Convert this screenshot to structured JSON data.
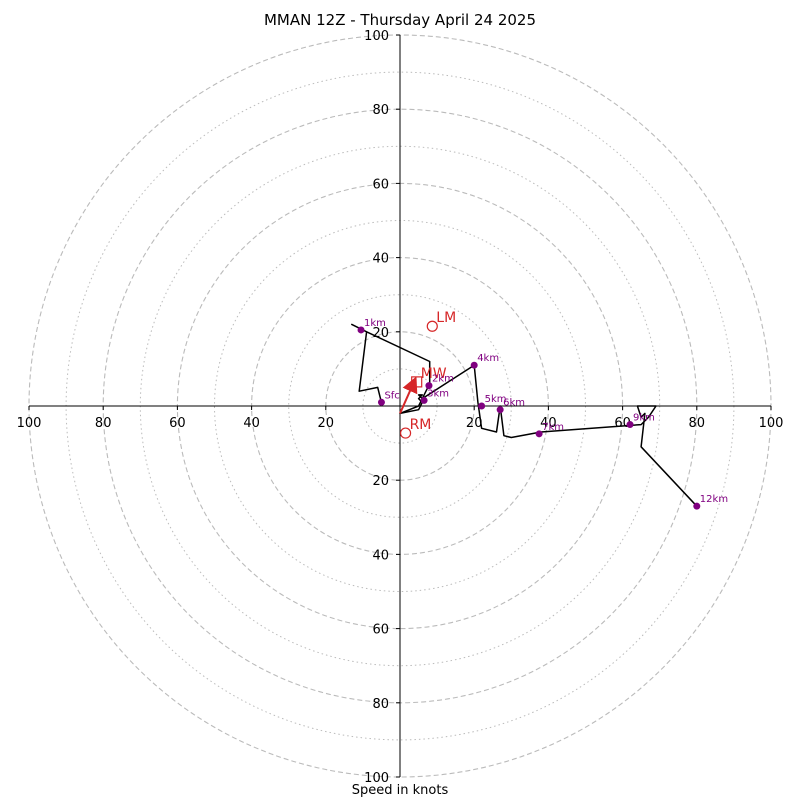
{
  "chart_data": {
    "type": "scatter",
    "title": "MMAN 12Z - Thursday April 24 2025",
    "xlabel": "Speed in knots",
    "ylabel": "",
    "xlim": [
      -100,
      100
    ],
    "ylim": [
      -100,
      100
    ],
    "rings_major": [
      20,
      40,
      60,
      80,
      100
    ],
    "rings_minor": [
      10,
      30,
      50,
      70,
      90
    ],
    "ticks": [
      20,
      40,
      60,
      80,
      100
    ],
    "grid": true,
    "colors": {
      "trace": "#000000",
      "height_marker": "#800080",
      "storm_motion": "#d62728",
      "grid": "#bbbbbb"
    },
    "hodograph_trace": [
      [
        -5,
        1
      ],
      [
        -6,
        5
      ],
      [
        -11,
        4
      ],
      [
        -9,
        20
      ],
      [
        -13,
        22
      ],
      [
        -9,
        20
      ],
      [
        8,
        12
      ],
      [
        8,
        6
      ],
      [
        6,
        2
      ],
      [
        5,
        3
      ],
      [
        6,
        3
      ],
      [
        5,
        2
      ],
      [
        6,
        1
      ],
      [
        5,
        -1
      ],
      [
        0,
        -2
      ],
      [
        5,
        0
      ],
      [
        6,
        2
      ],
      [
        20,
        11
      ],
      [
        21,
        1
      ],
      [
        22,
        -6
      ],
      [
        26,
        -7
      ],
      [
        27,
        0
      ],
      [
        28,
        -8
      ],
      [
        30,
        -8.5
      ],
      [
        38,
        -7
      ],
      [
        65,
        -5
      ],
      [
        67,
        -3
      ],
      [
        69,
        0
      ],
      [
        64,
        0
      ],
      [
        65,
        -3
      ],
      [
        66,
        -2
      ],
      [
        65,
        -11
      ],
      [
        80,
        -27
      ]
    ],
    "height_markers": [
      {
        "label": "Sfc",
        "u": -5,
        "v": 1
      },
      {
        "label": "1km",
        "u": -10.5,
        "v": 20.5
      },
      {
        "label": "2km",
        "u": 7.8,
        "v": 5.5
      },
      {
        "label": "3km",
        "u": 6.5,
        "v": 1.5
      },
      {
        "label": "4km",
        "u": 20,
        "v": 11
      },
      {
        "label": "5km",
        "u": 22,
        "v": 0
      },
      {
        "label": "6km",
        "u": 27,
        "v": -1
      },
      {
        "label": "7km",
        "u": 37.5,
        "v": -7.5
      },
      {
        "label": "9km",
        "u": 62,
        "v": -5
      },
      {
        "label": "12km",
        "u": 80,
        "v": -27
      }
    ],
    "storm_motion": [
      {
        "label": "LM",
        "u": 8.7,
        "v": 21.5
      },
      {
        "label": "RM",
        "u": 1.5,
        "v": -7.3
      },
      {
        "label": "MW",
        "u": 4.5,
        "v": 6.5
      }
    ],
    "storm_motion_vector": {
      "from": [
        0,
        -2
      ],
      "to": [
        4,
        7
      ]
    }
  }
}
